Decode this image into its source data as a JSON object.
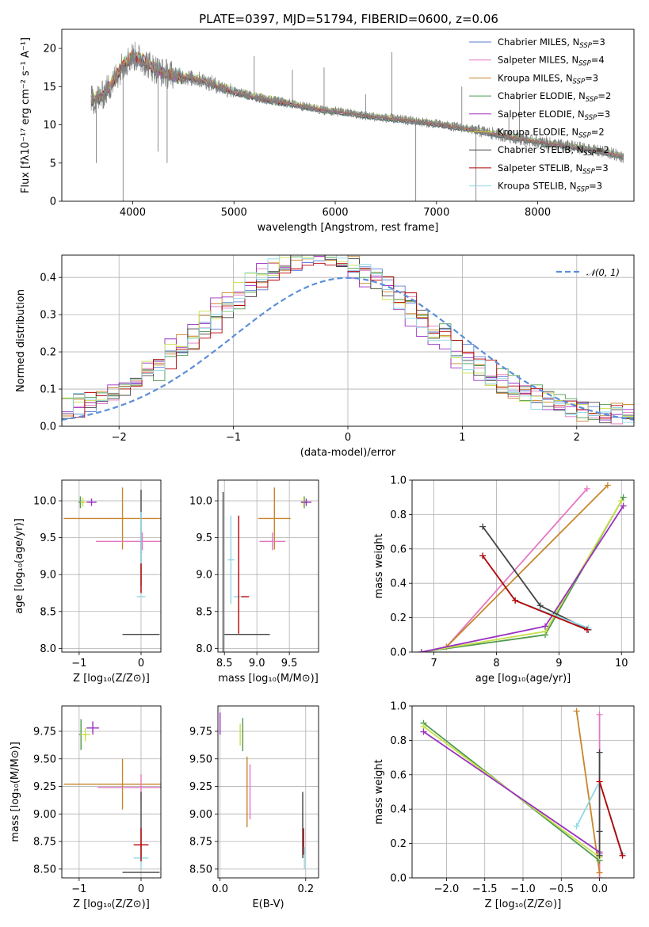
{
  "figure_title": "PLATE=0397, MJD=51794, FIBERID=0600, z=0.06",
  "colors": {
    "Chabrier MILES": "#5b7bd5",
    "Salpeter MILES": "#e377c2",
    "Kroupa MILES": "#c8852b",
    "Chabrier ELODIE": "#4e9a4e",
    "Salpeter ELODIE": "#9b30c0",
    "Kroupa ELODIE": "#c8e04c",
    "Chabrier STELIB": "#444444",
    "Salpeter STELIB": "#b80000",
    "Kroupa STELIB": "#8fd8e6",
    "gaussian": "#5b8fd9",
    "data_spectrum": "#808080",
    "orange_model": "#e07b39"
  },
  "chart_data": [
    {
      "id": "spectrum",
      "type": "line",
      "xlabel": "wavelength [Angstrom, rest frame]",
      "ylabel": "Flux [fλ10⁻¹⁷ erg cm⁻² s⁻¹ A⁻¹]",
      "xlim": [
        3300,
        8950
      ],
      "ylim": [
        0,
        22.5
      ],
      "xticks": [
        4000,
        5000,
        6000,
        7000,
        8000
      ],
      "yticks": [
        0,
        5,
        10,
        15,
        20
      ],
      "legend_position": "upper right",
      "legend": [
        "Chabrier MILES, N_SSP=3",
        "Salpeter MILES, N_SSP=4",
        "Kroupa MILES, N_SSP=3",
        "Chabrier ELODIE, N_SSP=2",
        "Salpeter ELODIE, N_SSP=3",
        "Kroupa ELODIE, N_SSP=2",
        "Chabrier STELIB, N_SSP=2",
        "Salpeter STELIB, N_SSP=3",
        "Kroupa STELIB, N_SSP=3"
      ],
      "legend_text": [
        {
          "base": "Chabrier MILES, N",
          "sub": "SSP",
          "tail": "=3"
        },
        {
          "base": "Salpeter MILES, N",
          "sub": "SSP",
          "tail": "=4"
        },
        {
          "base": "Kroupa MILES, N",
          "sub": "SSP",
          "tail": "=3"
        },
        {
          "base": "Chabrier ELODIE, N",
          "sub": "SSP",
          "tail": "=2"
        },
        {
          "base": "Salpeter ELODIE, N",
          "sub": "SSP",
          "tail": "=3"
        },
        {
          "base": "Kroupa ELODIE, N",
          "sub": "SSP",
          "tail": "=2"
        },
        {
          "base": "Chabrier STELIB, N",
          "sub": "SSP",
          "tail": "=2"
        },
        {
          "base": "Salpeter STELIB, N",
          "sub": "SSP",
          "tail": "=3"
        },
        {
          "base": "Kroupa STELIB, N",
          "sub": "SSP",
          "tail": "=3"
        }
      ],
      "continuum": [
        [
          3600,
          13.2
        ],
        [
          3700,
          13.8
        ],
        [
          3800,
          15.5
        ],
        [
          3900,
          17.8
        ],
        [
          4000,
          19.0
        ],
        [
          4100,
          18.5
        ],
        [
          4200,
          17.5
        ],
        [
          4300,
          16.8
        ],
        [
          4500,
          16.3
        ],
        [
          4700,
          15.8
        ],
        [
          4900,
          14.8
        ],
        [
          5100,
          14.0
        ],
        [
          5300,
          13.4
        ],
        [
          5500,
          12.9
        ],
        [
          5700,
          12.4
        ],
        [
          5900,
          11.9
        ],
        [
          6100,
          11.6
        ],
        [
          6300,
          11.2
        ],
        [
          6500,
          10.9
        ],
        [
          6700,
          10.6
        ],
        [
          6900,
          10.3
        ],
        [
          7100,
          9.9
        ],
        [
          7300,
          9.5
        ],
        [
          7500,
          9.0
        ],
        [
          7700,
          8.5
        ],
        [
          7900,
          8.0
        ],
        [
          8100,
          7.6
        ],
        [
          8300,
          7.2
        ],
        [
          8500,
          6.8
        ],
        [
          8700,
          6.3
        ],
        [
          8850,
          5.8
        ]
      ],
      "spectrum_xrange": [
        3590,
        8850
      ],
      "spikes": [
        [
          3905,
          0
        ],
        [
          4340,
          5
        ],
        [
          6795,
          0
        ],
        [
          7390,
          0
        ],
        [
          6560,
          19.5
        ],
        [
          5890,
          17.5
        ],
        [
          5200,
          19.0
        ],
        [
          4250,
          6.5
        ],
        [
          3640,
          5.0
        ],
        [
          5577,
          17.2
        ],
        [
          6300,
          14.0
        ],
        [
          7250,
          15.0
        ],
        [
          7715,
          11.0
        ],
        [
          7820,
          13.8
        ]
      ]
    },
    {
      "id": "residuals",
      "type": "histogram",
      "xlabel": "(data-model)/error",
      "ylabel": "Normed distribution",
      "xlim": [
        -2.5,
        2.5
      ],
      "ylim": [
        0,
        0.46
      ],
      "xticks": [
        -2,
        -1,
        0,
        1,
        2
      ],
      "yticks": [
        0.0,
        0.1,
        0.2,
        0.3,
        0.4
      ],
      "legend": [
        "𝒩(0, 1)"
      ],
      "legend_position": "upper right",
      "grid": true,
      "bins": 50
    },
    {
      "id": "age_vs_Z",
      "type": "errorbar",
      "xlabel": "Z [log₁₀(Z/Z⊙)]",
      "ylabel": "age  [log₁₀(age/yr)]",
      "xlim": [
        -1.28,
        0.32
      ],
      "ylim": [
        7.95,
        10.28
      ],
      "xticks": [
        -1,
        0
      ],
      "yticks": [
        8.0,
        8.5,
        9.0,
        9.5,
        10.0
      ],
      "grid": true,
      "points": [
        {
          "model": "Kroupa MILES",
          "x": -0.3,
          "y": 9.76,
          "xerr": 0.95,
          "yerr": 0.42
        },
        {
          "model": "Salpeter MILES",
          "x": 0.02,
          "y": 9.45,
          "xerr": 0.75,
          "yerr": 0.12
        },
        {
          "model": "Chabrier ELODIE",
          "x": -0.98,
          "y": 9.98,
          "xerr": 0.03,
          "yerr": 0.08
        },
        {
          "model": "Kroupa ELODIE",
          "x": -0.94,
          "y": 9.98,
          "xerr": 0.04,
          "yerr": 0.06
        },
        {
          "model": "Salpeter ELODIE",
          "x": -0.8,
          "y": 9.98,
          "xerr": 0.08,
          "yerr": 0.05
        },
        {
          "model": "Chabrier STELIB",
          "x": 0.0,
          "y": 9.5,
          "xerr": 0.0,
          "yerr": 0.65
        },
        {
          "model": "Chabrier STELIB",
          "x": 0.0,
          "y": 8.19,
          "xerr": 0.3,
          "yerr": 0.0
        },
        {
          "model": "Kroupa STELIB",
          "x": 0.0,
          "y": 9.3,
          "xerr": 0.02,
          "yerr": 0.55
        },
        {
          "model": "Kroupa STELIB",
          "x": 0.0,
          "y": 8.7,
          "xerr": 0.07,
          "yerr": 0.0
        },
        {
          "model": "Salpeter STELIB",
          "x": 0.0,
          "y": 8.95,
          "xerr": 0.0,
          "yerr": 0.2
        }
      ]
    },
    {
      "id": "age_vs_mass",
      "type": "errorbar",
      "xlabel": "mass [log₁₀(M/M⊙)]",
      "ylabel": "",
      "xlim": [
        8.4,
        9.95
      ],
      "ylim": [
        7.95,
        10.28
      ],
      "xticks": [
        8.5,
        9.0,
        9.5
      ],
      "yticks": [
        8.0,
        8.5,
        9.0,
        9.5,
        10.0
      ],
      "grid": true,
      "points": [
        {
          "model": "Kroupa MILES",
          "x": 9.27,
          "y": 9.76,
          "xerr": 0.25,
          "yerr": 0.42
        },
        {
          "model": "Salpeter MILES",
          "x": 9.24,
          "y": 9.45,
          "xerr": 0.2,
          "yerr": 0.12
        },
        {
          "model": "Chabrier ELODIE",
          "x": 9.73,
          "y": 9.98,
          "xerr": 0.05,
          "yerr": 0.08
        },
        {
          "model": "Kroupa ELODIE",
          "x": 9.72,
          "y": 9.98,
          "xerr": 0.04,
          "yerr": 0.06
        },
        {
          "model": "Salpeter ELODIE",
          "x": 9.76,
          "y": 9.98,
          "xerr": 0.08,
          "yerr": 0.05
        },
        {
          "model": "Chabrier STELIB",
          "x": 8.48,
          "y": 9.0,
          "xerr": 0.0,
          "yerr": 1.12
        },
        {
          "model": "Chabrier STELIB",
          "x": 8.85,
          "y": 8.19,
          "xerr": 0.35,
          "yerr": 0.0
        },
        {
          "model": "Kroupa STELIB",
          "x": 8.6,
          "y": 9.2,
          "xerr": 0.05,
          "yerr": 0.6
        },
        {
          "model": "Kroupa STELIB",
          "x": 8.72,
          "y": 8.7,
          "xerr": 0.08,
          "yerr": 0.0
        },
        {
          "model": "Salpeter STELIB",
          "x": 8.72,
          "y": 9.0,
          "xerr": 0.0,
          "yerr": 0.8
        },
        {
          "model": "Salpeter STELIB",
          "x": 8.82,
          "y": 8.7,
          "xerr": 0.06,
          "yerr": 0.0
        }
      ]
    },
    {
      "id": "weight_vs_age",
      "type": "line",
      "xlabel": "age  [log₁₀(age/yr)]",
      "ylabel": "mass weight",
      "xlim": [
        6.65,
        10.2
      ],
      "ylim": [
        0,
        1
      ],
      "xticks": [
        7,
        8,
        9,
        10
      ],
      "yticks": [
        0.0,
        0.2,
        0.4,
        0.6,
        0.8,
        1.0
      ],
      "grid": true,
      "series": [
        {
          "model": "Salpeter MILES",
          "x": [
            7.2,
            9.45
          ],
          "y": [
            0.03,
            0.95
          ]
        },
        {
          "model": "Kroupa MILES",
          "x": [
            7.2,
            9.78
          ],
          "y": [
            0.03,
            0.97
          ]
        },
        {
          "model": "Chabrier ELODIE",
          "x": [
            6.8,
            8.78,
            10.03
          ],
          "y": [
            0.0,
            0.1,
            0.9
          ]
        },
        {
          "model": "Kroupa ELODIE",
          "x": [
            6.8,
            8.78,
            10.0
          ],
          "y": [
            0.0,
            0.12,
            0.88
          ]
        },
        {
          "model": "Salpeter ELODIE",
          "x": [
            6.8,
            8.78,
            10.03
          ],
          "y": [
            0.0,
            0.15,
            0.85
          ]
        },
        {
          "model": "Chabrier STELIB",
          "x": [
            7.78,
            8.7,
            9.47
          ],
          "y": [
            0.73,
            0.27,
            0.13
          ]
        },
        {
          "model": "Kroupa STELIB",
          "x": [
            7.78,
            8.3,
            9.47
          ],
          "y": [
            0.56,
            0.3,
            0.14
          ]
        },
        {
          "model": "Salpeter STELIB",
          "x": [
            7.78,
            8.3,
            9.45
          ],
          "y": [
            0.56,
            0.3,
            0.13
          ]
        }
      ]
    },
    {
      "id": "mass_vs_Z",
      "type": "errorbar",
      "xlabel": "Z [log₁₀(Z/Z⊙)]",
      "ylabel": "mass [log₁₀(M/M⊙)]",
      "xlim": [
        -1.28,
        0.32
      ],
      "ylim": [
        8.42,
        9.98
      ],
      "xticks": [
        -1,
        0
      ],
      "yticks": [
        8.5,
        8.75,
        9.0,
        9.25,
        9.5,
        9.75
      ],
      "grid": true,
      "points": [
        {
          "model": "Kroupa MILES",
          "x": -0.3,
          "y": 9.27,
          "xerr": 0.95,
          "yerr": 0.23
        },
        {
          "model": "Salpeter MILES",
          "x": 0.0,
          "y": 9.24,
          "xerr": 0.7,
          "yerr": 0.12
        },
        {
          "model": "Chabrier ELODIE",
          "x": -0.97,
          "y": 9.72,
          "xerr": 0.03,
          "yerr": 0.14
        },
        {
          "model": "Kroupa ELODIE",
          "x": -0.9,
          "y": 9.72,
          "xerr": 0.08,
          "yerr": 0.06
        },
        {
          "model": "Salpeter ELODIE",
          "x": -0.78,
          "y": 9.78,
          "xerr": 0.1,
          "yerr": 0.06
        },
        {
          "model": "Chabrier STELIB",
          "x": 0.0,
          "y": 8.47,
          "xerr": 0.3,
          "yerr": 0.0
        },
        {
          "model": "Chabrier STELIB",
          "x": 0.0,
          "y": 8.9,
          "xerr": 0.0,
          "yerr": 0.3
        },
        {
          "model": "Kroupa STELIB",
          "x": 0.0,
          "y": 8.6,
          "xerr": 0.12,
          "yerr": 0.1
        },
        {
          "model": "Salpeter STELIB",
          "x": 0.0,
          "y": 8.72,
          "xerr": 0.12,
          "yerr": 0.15
        }
      ]
    },
    {
      "id": "mass_vs_EBV",
      "type": "errorbar",
      "xlabel": "E(B-V)",
      "ylabel": "",
      "xlim": [
        -0.005,
        0.23
      ],
      "ylim": [
        8.42,
        9.98
      ],
      "xticks": [
        0.0,
        0.2
      ],
      "yticks": [
        8.5,
        8.75,
        9.0,
        9.25,
        9.5,
        9.75
      ],
      "grid": true,
      "points": [
        {
          "model": "Salpeter ELODIE",
          "x": 0.0,
          "y": 9.82,
          "xerr": 0.0,
          "yerr": 0.1
        },
        {
          "model": "Kroupa ELODIE",
          "x": 0.047,
          "y": 9.72,
          "xerr": 0.0,
          "yerr": 0.1
        },
        {
          "model": "Chabrier ELODIE",
          "x": 0.053,
          "y": 9.72,
          "xerr": 0.0,
          "yerr": 0.15
        },
        {
          "model": "Kroupa MILES",
          "x": 0.063,
          "y": 9.2,
          "xerr": 0.0,
          "yerr": 0.32
        },
        {
          "model": "Salpeter MILES",
          "x": 0.07,
          "y": 9.2,
          "xerr": 0.0,
          "yerr": 0.25
        },
        {
          "model": "Chabrier STELIB",
          "x": 0.193,
          "y": 8.9,
          "xerr": 0.0,
          "yerr": 0.3
        },
        {
          "model": "Salpeter STELIB",
          "x": 0.195,
          "y": 8.75,
          "xerr": 0.0,
          "yerr": 0.12
        },
        {
          "model": "Kroupa STELIB",
          "x": 0.197,
          "y": 8.6,
          "xerr": 0.0,
          "yerr": 0.1
        }
      ]
    },
    {
      "id": "weight_vs_Z",
      "type": "line",
      "xlabel": "Z [log₁₀(Z/Z⊙)]",
      "ylabel": "mass weight",
      "xlim": [
        -2.45,
        0.45
      ],
      "ylim": [
        0,
        1
      ],
      "xticks": [
        -2.0,
        -1.5,
        -1.0,
        -0.5,
        0.0
      ],
      "yticks": [
        0.0,
        0.2,
        0.4,
        0.6,
        0.8,
        1.0
      ],
      "grid": true,
      "series": [
        {
          "model": "Salpeter MILES",
          "x": [
            0.0,
            0.0,
            0.0,
            0.0
          ],
          "y": [
            0.95,
            0.14,
            0.03,
            0.0
          ]
        },
        {
          "model": "Kroupa MILES",
          "x": [
            -0.3,
            0.0
          ],
          "y": [
            0.97,
            0.03
          ]
        },
        {
          "model": "Chabrier ELODIE",
          "x": [
            -2.3,
            0.0
          ],
          "y": [
            0.9,
            0.1
          ]
        },
        {
          "model": "Kroupa ELODIE",
          "x": [
            -2.3,
            0.0
          ],
          "y": [
            0.88,
            0.12
          ]
        },
        {
          "model": "Salpeter ELODIE",
          "x": [
            -2.3,
            0.0
          ],
          "y": [
            0.85,
            0.15
          ]
        },
        {
          "model": "Chabrier STELIB",
          "x": [
            0.0,
            0.0,
            0.0
          ],
          "y": [
            0.73,
            0.27,
            0.13
          ]
        },
        {
          "model": "Kroupa STELIB",
          "x": [
            -0.3,
            0.0,
            0.3
          ],
          "y": [
            0.3,
            0.56,
            0.14
          ]
        },
        {
          "model": "Salpeter STELIB",
          "x": [
            0.0,
            0.3
          ],
          "y": [
            0.56,
            0.13
          ]
        }
      ]
    }
  ]
}
